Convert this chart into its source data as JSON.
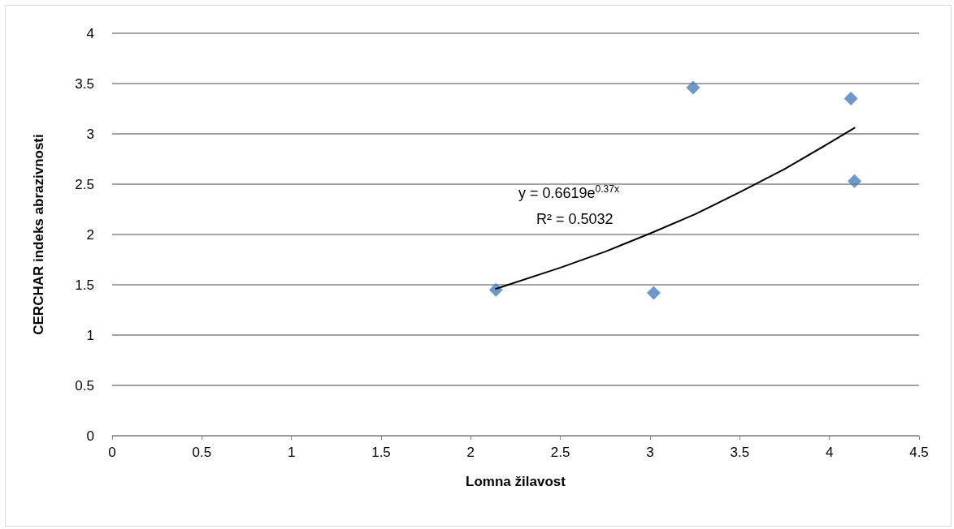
{
  "chart_data": {
    "type": "scatter",
    "xlabel": "Lomna žilavost",
    "ylabel": "CERCHAR indeks abrazivnosti",
    "annotations": [
      "y = 0.6619e$^{0.37x}$",
      "R² = 0.5032"
    ],
    "xlim": [
      0,
      4.5
    ],
    "xticks": [
      0,
      0.5,
      1,
      1.5,
      2,
      2.5,
      3,
      3.5,
      4,
      4.5
    ],
    "ylim": [
      0,
      4
    ],
    "yticks": [
      0,
      0.5,
      1,
      1.5,
      2,
      2.5,
      3,
      3.5,
      4
    ],
    "grid": "y",
    "series": [
      {
        "color": "#4a7ebb",
        "marker": "diamond",
        "x": [
          2.14,
          3.02,
          3.24,
          4.12,
          4.14
        ],
        "values": [
          1.45,
          1.42,
          3.46,
          3.35,
          2.53
        ]
      },
      {
        "type": "line",
        "color": "#000000",
        "marker": "none",
        "line_style": "solid",
        "x": [
          2.14,
          2.5,
          2.75,
          3,
          3.25,
          3.5,
          3.75,
          4,
          4.14
        ],
        "values": [
          1.46,
          1.67,
          1.83,
          2.01,
          2.2,
          2.42,
          2.65,
          2.91,
          3.06
        ]
      }
    ]
  }
}
